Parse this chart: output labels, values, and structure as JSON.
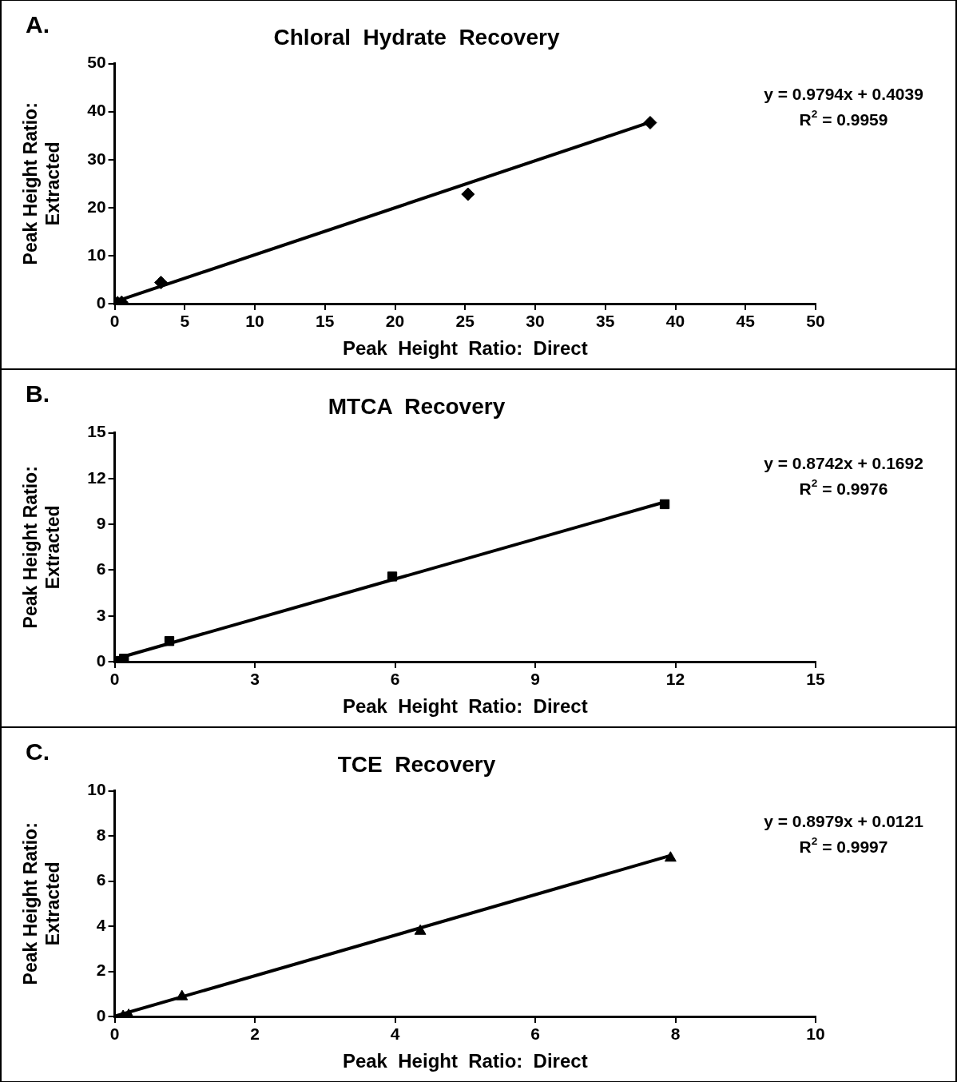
{
  "chart_data": [
    {
      "type": "scatter",
      "title": "Chloral  Hydrate  Recovery",
      "xlabel": "Peak  Height  Ratio:  Direct",
      "ylabel": "Peak Height Ratio:\nExtracted",
      "annotations": [
        "A.",
        "y = 0.9794x + 0.4039",
        "R$^{2}$ = 0.9959"
      ],
      "xlim": [
        0,
        50
      ],
      "xticks": [
        0,
        5,
        10,
        15,
        20,
        25,
        30,
        35,
        40,
        45,
        50
      ],
      "ylim": [
        0,
        50
      ],
      "yticks": [
        0,
        10,
        20,
        30,
        40,
        50
      ],
      "grid": false,
      "legend": false,
      "marker": "diamond",
      "series": [
        {
          "color": "#000000",
          "x": [
            0.2,
            0.5,
            3.3,
            25.2,
            38.2
          ],
          "values": [
            0.2,
            0.3,
            4.4,
            22.8,
            37.7
          ]
        },
        {
          "type": "line",
          "color": "#000000",
          "marker": "none",
          "x": [
            0,
            38.2
          ],
          "values": [
            0.4,
            37.8
          ]
        }
      ]
    },
    {
      "type": "scatter",
      "title": "MTCA  Recovery",
      "xlabel": "Peak  Height  Ratio:  Direct",
      "ylabel": "Peak Height Ratio:\nExtracted",
      "annotations": [
        "B.",
        "y = 0.8742x + 0.1692",
        "R$^{2}$ = 0.9976"
      ],
      "xlim": [
        0,
        15
      ],
      "xticks": [
        0,
        3,
        6,
        9,
        12,
        15
      ],
      "ylim": [
        0,
        15
      ],
      "yticks": [
        0,
        3,
        6,
        9,
        12,
        15
      ],
      "grid": false,
      "legend": false,
      "marker": "square",
      "series": [
        {
          "color": "#000000",
          "x": [
            0.05,
            0.2,
            1.17,
            5.94,
            11.77
          ],
          "values": [
            0.05,
            0.2,
            1.35,
            5.58,
            10.32
          ]
        },
        {
          "type": "line",
          "color": "#000000",
          "marker": "none",
          "x": [
            0,
            11.77
          ],
          "values": [
            0.17,
            10.46
          ]
        }
      ]
    },
    {
      "type": "scatter",
      "title": "TCE  Recovery",
      "xlabel": "Peak  Height  Ratio:  Direct",
      "ylabel": "Peak Height Ratio:\nExtracted",
      "annotations": [
        "C.",
        "y = 0.8979x + 0.0121",
        "R$^{2}$ = 0.9997"
      ],
      "xlim": [
        0,
        10
      ],
      "xticks": [
        0,
        2,
        4,
        6,
        8,
        10
      ],
      "ylim": [
        0,
        10
      ],
      "yticks": [
        0,
        2,
        4,
        6,
        8,
        10
      ],
      "grid": false,
      "legend": false,
      "marker": "triangle",
      "series": [
        {
          "color": "#000000",
          "x": [
            0.12,
            0.2,
            0.96,
            4.36,
            7.93
          ],
          "values": [
            0.0,
            0.05,
            0.88,
            3.78,
            7.02
          ]
        },
        {
          "type": "line",
          "color": "#000000",
          "marker": "none",
          "x": [
            0,
            7.93
          ],
          "values": [
            0.01,
            7.13
          ]
        }
      ]
    }
  ]
}
